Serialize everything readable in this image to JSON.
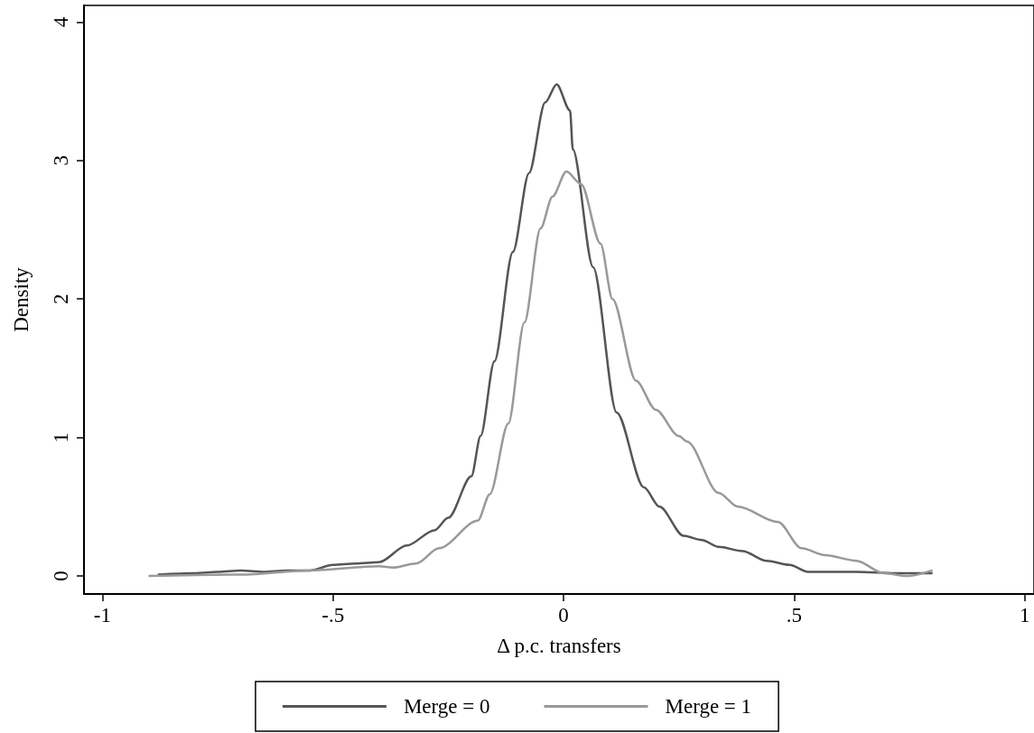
{
  "chart_data": {
    "type": "line",
    "xlabel": "Δ p.c. transfers",
    "ylabel": "Density",
    "xlim": [
      -1.04,
      1.02
    ],
    "ylim": [
      -0.13,
      4.12
    ],
    "xticks": [
      {
        "value": -1,
        "label": "-1"
      },
      {
        "value": -0.5,
        "label": "-.5"
      },
      0,
      {
        "value": 0.5,
        "label": ".5"
      },
      1
    ],
    "yticks": [
      0,
      1,
      2,
      3,
      4
    ],
    "grid": false,
    "legend": "bottom",
    "marker": "none",
    "line_style": "solid",
    "series": [
      {
        "name": "Merge = 0",
        "color": "#555555",
        "x": [
          -0.88,
          -0.8,
          -0.75,
          -0.7,
          -0.65,
          -0.6,
          -0.55,
          -0.5,
          -0.45,
          -0.4,
          -0.34,
          -0.28,
          -0.25,
          -0.2,
          -0.18,
          -0.15,
          -0.11,
          -0.075,
          -0.04,
          -0.015,
          0.014,
          0.02,
          0.064,
          0.115,
          0.174,
          0.208,
          0.26,
          0.3,
          0.336,
          0.388,
          0.44,
          0.49,
          0.53,
          0.635,
          0.72,
          0.8
        ],
        "values": [
          0.01,
          0.02,
          0.03,
          0.04,
          0.03,
          0.04,
          0.04,
          0.08,
          0.09,
          0.1,
          0.22,
          0.33,
          0.42,
          0.72,
          1.01,
          1.55,
          2.34,
          2.91,
          3.42,
          3.55,
          3.36,
          3.08,
          2.23,
          1.18,
          0.64,
          0.5,
          0.29,
          0.26,
          0.21,
          0.18,
          0.11,
          0.08,
          0.03,
          0.03,
          0.02,
          0.02
        ]
      },
      {
        "name": "Merge = 1",
        "color": "#999999",
        "x": [
          -0.9,
          -0.7,
          -0.55,
          -0.4,
          -0.37,
          -0.32,
          -0.27,
          -0.186,
          -0.16,
          -0.12,
          -0.085,
          -0.05,
          -0.024,
          0.006,
          0.038,
          0.08,
          0.106,
          0.157,
          0.2,
          0.25,
          0.268,
          0.336,
          0.378,
          0.465,
          0.516,
          0.567,
          0.635,
          0.694,
          0.745,
          0.8
        ],
        "values": [
          0,
          0.01,
          0.04,
          0.07,
          0.06,
          0.09,
          0.2,
          0.4,
          0.59,
          1.1,
          1.83,
          2.51,
          2.74,
          2.92,
          2.83,
          2.4,
          2,
          1.41,
          1.2,
          1.01,
          0.97,
          0.6,
          0.5,
          0.39,
          0.2,
          0.15,
          0.11,
          0.02,
          0,
          0.04
        ]
      }
    ]
  }
}
